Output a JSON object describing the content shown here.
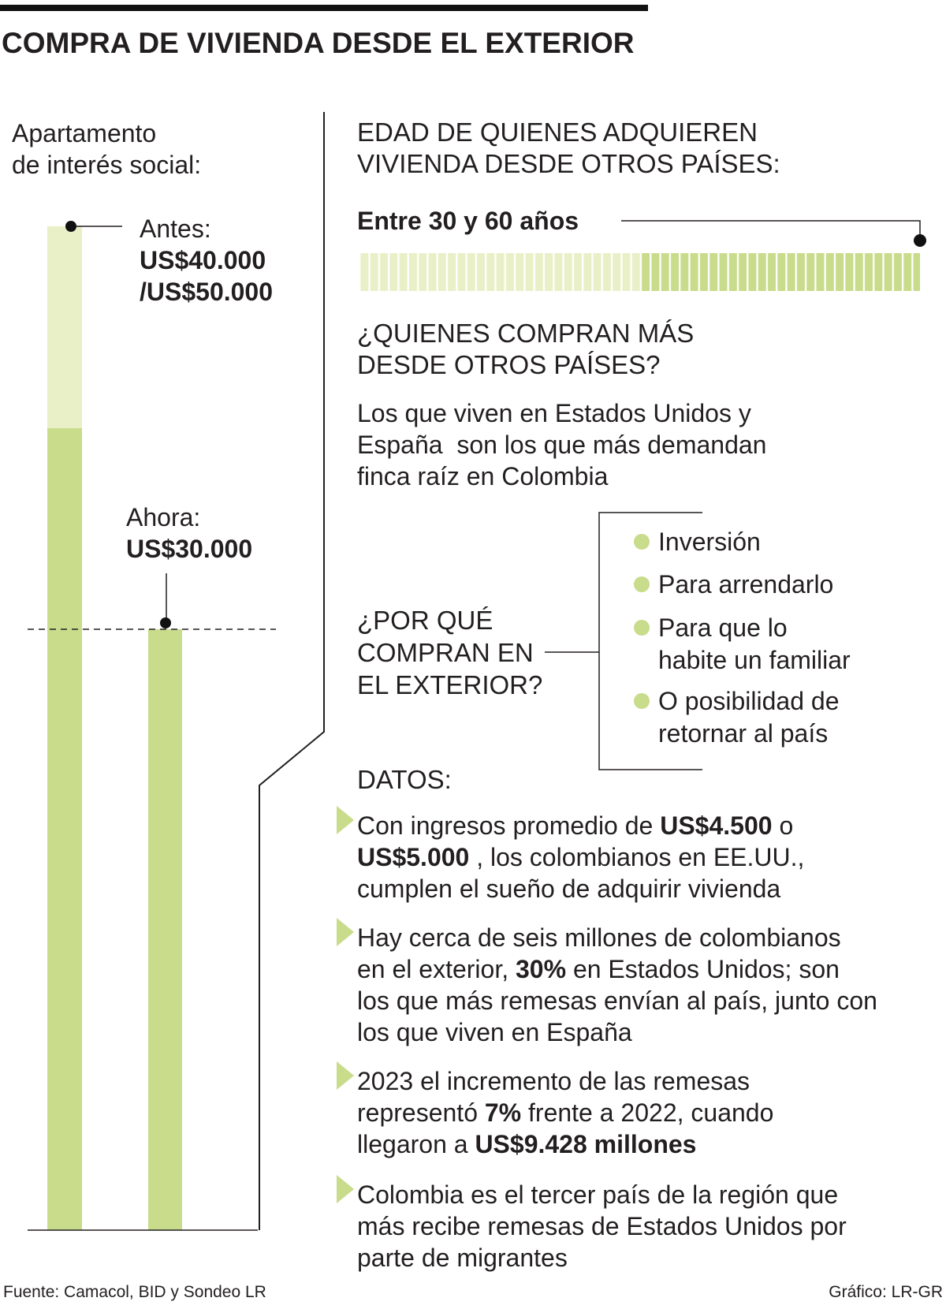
{
  "header": {
    "title": "COMPRA DE VIVIENDA DESDE EL EXTERIOR"
  },
  "price_panel": {
    "label": [
      "Apartamento",
      "de interés social:"
    ],
    "before_label": "Antes:",
    "before_value": [
      "US$40.000",
      "/US$50.000"
    ],
    "now_label": "Ahora:",
    "now_value": "US$30.000"
  },
  "age": {
    "heading": [
      "EDAD DE QUIENES ADQUIEREN",
      "VIVIENDA DESDE OTROS PAÍSES:"
    ],
    "range": "Entre 30 y 60 años"
  },
  "buyers": {
    "heading": [
      "¿QUIENES COMPRAN MÁS",
      "DESDE OTROS PAÍSES?"
    ],
    "text": [
      "Los que viven en Estados Unidos y",
      "España  son los que más demandan",
      "finca raíz en Colombia"
    ]
  },
  "reasons": {
    "heading": [
      "¿POR QUÉ",
      "COMPRAN EN",
      "EL EXTERIOR?"
    ],
    "items": [
      [
        "Inversión"
      ],
      [
        "Para arrendarlo"
      ],
      [
        "Para que lo",
        "habite un familiar"
      ],
      [
        "O posibilidad de",
        "retornar al país"
      ]
    ]
  },
  "facts": {
    "heading": "DATOS:",
    "items": [
      [
        [
          "Con ingresos promedio de ",
          "US$4.500",
          " o"
        ],
        [
          "US$5.000",
          " , los colombianos en EE.UU.,"
        ],
        [
          "cumplen el sueño de adquirir vivienda"
        ]
      ],
      [
        [
          "Hay cerca de seis millones de colombianos"
        ],
        [
          "en el exterior, ",
          "30%",
          " en Estados Unidos; son"
        ],
        [
          "los que más remesas envían al país, junto con"
        ],
        [
          "los que viven en España"
        ]
      ],
      [
        [
          "2023 el incremento de las remesas"
        ],
        [
          "representó ",
          "7%",
          " frente a 2022, cuando"
        ],
        [
          "llegaron a ",
          "US$9.428 millones"
        ]
      ],
      [
        [
          "Colombia es el tercer país de la región que"
        ],
        [
          "más recibe remesas de Estados Unidos por"
        ],
        [
          "parte de migrantes"
        ]
      ]
    ]
  },
  "footer": {
    "source": "Fuente: Camacol, BID y Sondeo LR",
    "credit": "Gráfico: LR-GR"
  }
}
